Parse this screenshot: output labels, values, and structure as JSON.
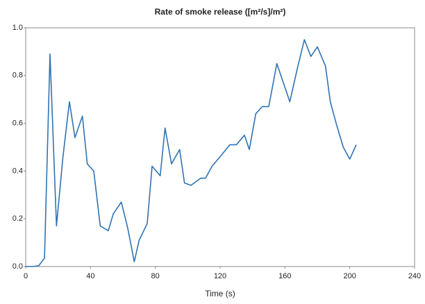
{
  "chart_data": {
    "type": "line",
    "title": "Rate of smoke release ([m²/s]/m²)",
    "x_label": "Time (s)",
    "x": [
      0,
      4,
      8,
      11.6,
      15,
      19,
      23,
      27,
      30.4,
      35,
      38,
      42,
      46,
      51,
      54,
      59,
      63,
      67,
      70,
      75,
      78,
      83,
      86,
      90,
      95,
      98,
      102,
      108,
      111,
      115,
      120,
      126,
      130,
      135,
      138,
      142,
      146,
      150,
      155,
      159,
      163,
      168,
      172,
      176,
      180,
      185,
      188,
      192,
      196,
      200,
      204
    ],
    "series": [
      {
        "name": "Rate of smoke release",
        "color": "#2f72b3",
        "values": [
          0,
          0,
          0.003,
          0.035,
          0.89,
          0.17,
          0.46,
          0.69,
          0.54,
          0.63,
          0.43,
          0.4,
          0.17,
          0.15,
          0.22,
          0.27,
          0.16,
          0.02,
          0.11,
          0.18,
          0.42,
          0.38,
          0.58,
          0.43,
          0.49,
          0.35,
          0.34,
          0.37,
          0.37,
          0.42,
          0.46,
          0.51,
          0.51,
          0.55,
          0.49,
          0.64,
          0.67,
          0.67,
          0.85,
          0.77,
          0.69,
          0.84,
          0.95,
          0.88,
          0.92,
          0.84,
          0.69,
          0.59,
          0.5,
          0.45,
          0.51
        ]
      }
    ],
    "xlim": [
      0,
      240
    ],
    "xticks": [
      0,
      40,
      80,
      120,
      160,
      200,
      240
    ],
    "ylim": [
      0,
      1
    ],
    "yticks": [
      {
        "value": 0,
        "label": "0.0"
      },
      0.2,
      0.4,
      0.6,
      0.8,
      {
        "value": 1,
        "label": "1.0"
      }
    ],
    "grid": false
  }
}
